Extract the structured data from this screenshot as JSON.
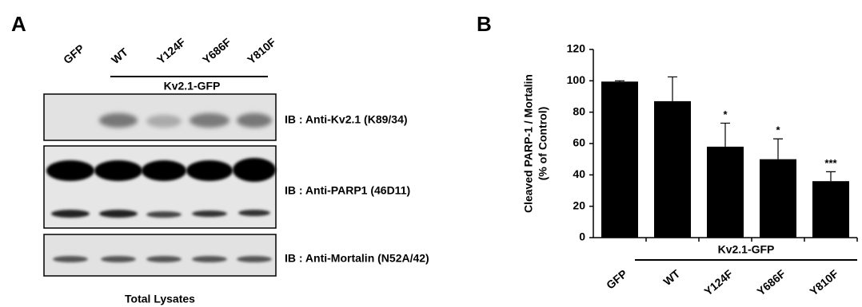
{
  "panel_a": {
    "label": "A",
    "lanes": [
      "GFP",
      "WT",
      "Y124F",
      "Y686F",
      "Y810F"
    ],
    "group": "Kv2.1-GFP",
    "blots": [
      "IB : Anti-Kv2.1 (K89/34)",
      "IB : Anti-PARP1 (46D11)",
      "IB : Anti-Mortalin (N52A/42)"
    ],
    "footer": "Total Lysates"
  },
  "chart_data": {
    "type": "bar",
    "panel_label": "B",
    "y_label": [
      "Cleaved PARP-1 / Mortalin",
      "(% of Control)"
    ],
    "categories": [
      "GFP",
      "WT",
      "Y124F",
      "Y686F",
      "Y810F"
    ],
    "values": [
      99.5,
      87,
      58,
      50,
      36
    ],
    "errors": [
      0.5,
      15.5,
      15,
      13,
      6
    ],
    "annotations": [
      null,
      null,
      "*",
      "*",
      "***"
    ],
    "group_label": "Kv2.1-GFP",
    "color": "#000000",
    "ylim": [
      0,
      120
    ],
    "yticks": [
      0,
      20,
      40,
      60,
      80,
      100,
      120
    ]
  }
}
